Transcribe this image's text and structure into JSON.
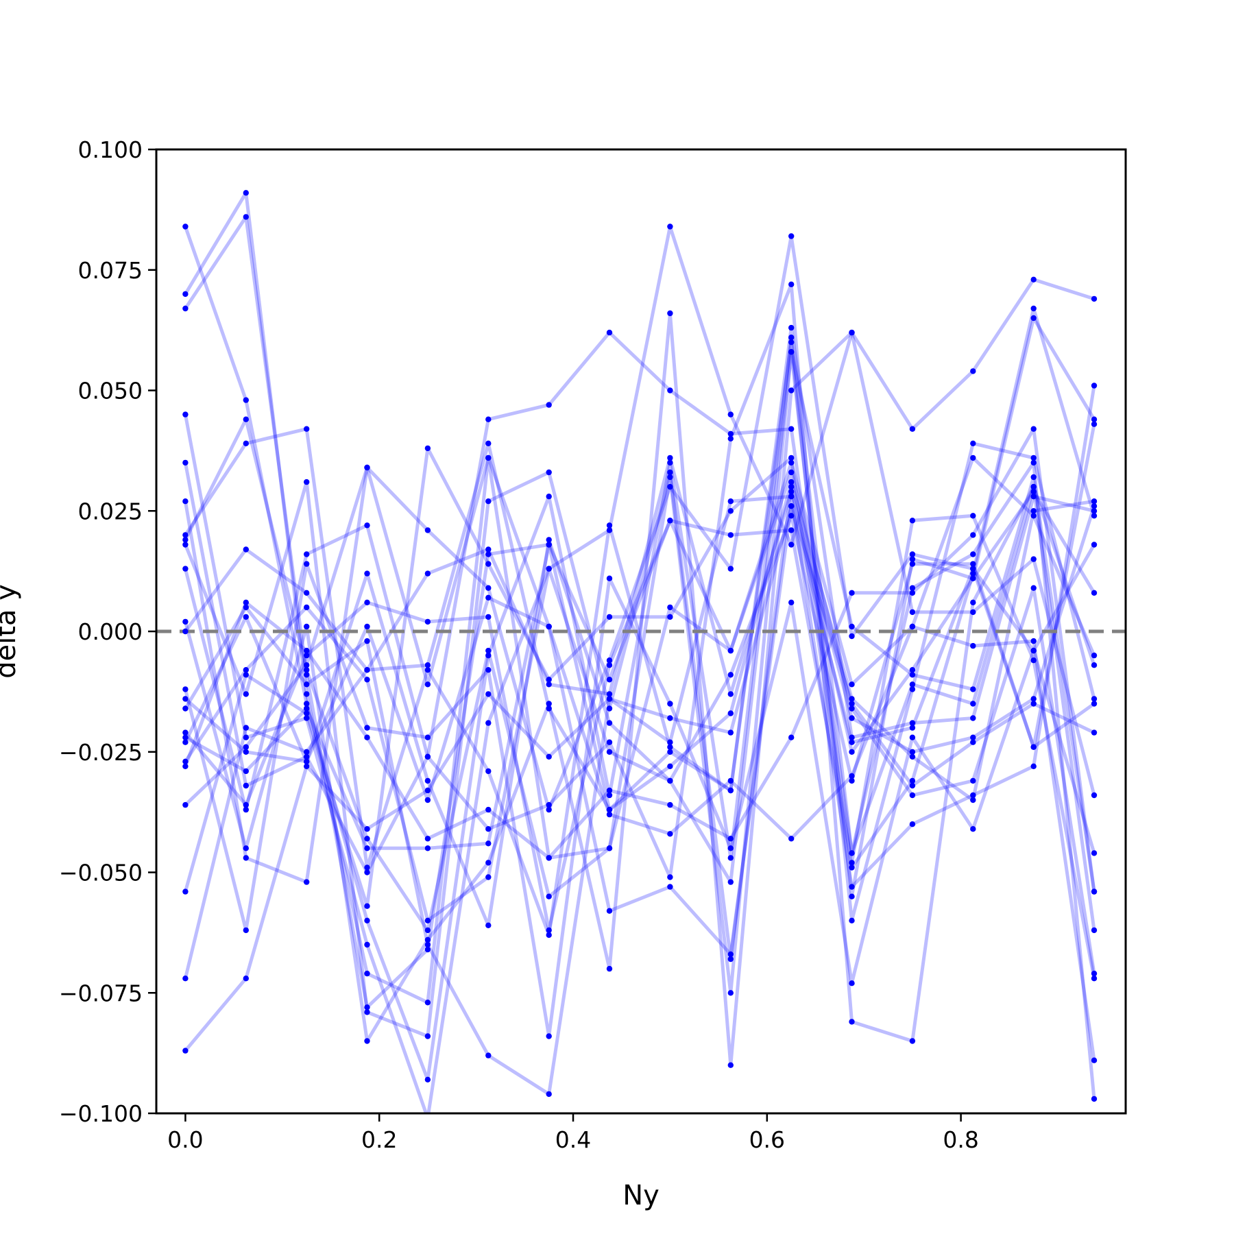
{
  "chart_data": {
    "type": "line",
    "title": "",
    "xlabel": "Ny",
    "ylabel": "delta y",
    "xlim": [
      -0.03,
      0.97
    ],
    "ylim": [
      -0.1,
      0.1
    ],
    "x_ticks": [
      "0.0",
      "0.2",
      "0.4",
      "0.6",
      "0.8"
    ],
    "x_tick_values": [
      0.0,
      0.2,
      0.4,
      0.6,
      0.8
    ],
    "y_ticks": [
      "−0.100",
      "−0.075",
      "−0.050",
      "−0.025",
      "0.000",
      "0.025",
      "0.050",
      "0.075",
      "0.100"
    ],
    "y_tick_values": [
      -0.1,
      -0.075,
      -0.05,
      -0.025,
      0.0,
      0.025,
      0.05,
      0.075,
      0.1
    ],
    "reference_line": {
      "y": 0.0,
      "style": "dashed",
      "color": "#808080"
    },
    "series_color": "#0000ff",
    "grid": false,
    "x": [
      0.0,
      0.0625,
      0.125,
      0.1875,
      0.25,
      0.3125,
      0.375,
      0.4375,
      0.5,
      0.5625,
      0.625,
      0.6875,
      0.75,
      0.8125,
      0.875,
      0.9375
    ],
    "series": [
      {
        "values": [
          0.084,
          0.048,
          -0.015,
          -0.06,
          -0.093,
          -0.005,
          0.028,
          -0.034,
          0.035,
          -0.047,
          0.061,
          -0.046,
          -0.011,
          -0.015,
          0.03,
          -0.007
        ]
      },
      {
        "values": [
          0.07,
          0.091,
          -0.013,
          -0.071,
          -0.077,
          0.036,
          -0.047,
          -0.045,
          0.032,
          -0.075,
          0.058,
          -0.055,
          0.015,
          0.011,
          0.065,
          0.044
        ]
      },
      {
        "values": [
          0.067,
          0.086,
          -0.009,
          -0.078,
          -0.066,
          0.016,
          0.018,
          -0.01,
          0.023,
          0.02,
          0.021,
          -0.048,
          0.023,
          0.024,
          -0.006,
          -0.072
        ]
      },
      {
        "values": [
          0.045,
          -0.022,
          -0.018,
          -0.065,
          -0.101,
          -0.019,
          0.013,
          0.021,
          0.084,
          0.045,
          0.018,
          0.062,
          0.042,
          0.054,
          0.073,
          0.069
        ]
      },
      {
        "values": [
          0.035,
          -0.032,
          -0.026,
          -0.05,
          -0.026,
          0.044,
          0.047,
          0.062,
          0.05,
          0.041,
          0.042,
          -0.046,
          0.009,
          0.016,
          0.035,
          -0.097
        ]
      },
      {
        "values": [
          0.027,
          -0.047,
          -0.052,
          0.034,
          0.021,
          0.009,
          -0.037,
          -0.006,
          0.03,
          0.013,
          0.082,
          -0.001,
          0.016,
          0.013,
          -0.004,
          0.018
        ]
      },
      {
        "values": [
          0.02,
          0.039,
          0.042,
          -0.049,
          -0.008,
          -0.029,
          -0.063,
          0.022,
          -0.024,
          -0.033,
          0.06,
          -0.06,
          -0.012,
          0.039,
          0.036,
          -0.014
        ]
      },
      {
        "values": [
          0.019,
          0.044,
          -0.008,
          -0.043,
          -0.062,
          -0.004,
          -0.055,
          -0.045,
          0.005,
          -0.004,
          0.035,
          -0.011,
          0.001,
          0.036,
          0.024,
          -0.005
        ]
      },
      {
        "values": [
          0.018,
          -0.013,
          0.031,
          -0.079,
          -0.084,
          0.027,
          0.033,
          -0.016,
          0.033,
          -0.068,
          0.03,
          -0.025,
          -0.008,
          0.011,
          0.029,
          0.008
        ]
      },
      {
        "values": [
          0.013,
          -0.037,
          0.016,
          0.022,
          -0.026,
          -0.041,
          -0.036,
          -0.023,
          -0.051,
          0.04,
          0.072,
          -0.081,
          -0.085,
          0.006,
          0.03,
          -0.062
        ]
      },
      {
        "values": [
          0.002,
          -0.045,
          0.001,
          -0.085,
          -0.064,
          -0.048,
          -0.015,
          -0.07,
          0.066,
          -0.09,
          0.05,
          0.062,
          0.004,
          0.004,
          0.015,
          -0.034
        ]
      },
      {
        "values": [
          0.0,
          0.017,
          0.008,
          -0.008,
          0.012,
          0.017,
          -0.011,
          -0.013,
          0.036,
          -0.013,
          0.029,
          -0.018,
          -0.025,
          -0.022,
          -0.014,
          0.026
        ]
      },
      {
        "values": [
          -0.012,
          -0.062,
          0.014,
          -0.02,
          -0.022,
          -0.008,
          -0.084,
          0.011,
          -0.015,
          -0.045,
          0.006,
          -0.073,
          -0.022,
          -0.041,
          -0.004,
          -0.046
        ]
      },
      {
        "values": [
          -0.014,
          -0.025,
          -0.027,
          0.012,
          -0.031,
          -0.061,
          0.019,
          -0.019,
          -0.031,
          -0.052,
          0.058,
          0.001,
          -0.009,
          -0.012,
          0.032,
          -0.054
        ]
      },
      {
        "values": [
          -0.016,
          0.005,
          -0.011,
          -0.002,
          -0.065,
          -0.088,
          -0.096,
          -0.014,
          -0.018,
          -0.021,
          0.026,
          -0.015,
          -0.032,
          -0.023,
          -0.015,
          -0.021
        ]
      },
      {
        "values": [
          -0.021,
          -0.036,
          -0.005,
          0.006,
          0.002,
          0.003,
          -0.062,
          -0.007,
          0.023,
          -0.004,
          0.033,
          -0.016,
          -0.034,
          -0.031,
          0.009,
          -0.071
        ]
      },
      {
        "values": [
          -0.022,
          -0.029,
          -0.016,
          -0.045,
          -0.045,
          -0.044,
          0.018,
          -0.037,
          -0.028,
          -0.017,
          0.031,
          -0.014,
          -0.026,
          -0.035,
          0.025,
          0.027
        ]
      },
      {
        "values": [
          -0.023,
          0.003,
          -0.027,
          0.001,
          -0.035,
          0.007,
          0.001,
          -0.058,
          -0.053,
          -0.067,
          0.026,
          -0.023,
          -0.02,
          0.013,
          -0.024,
          -0.015
        ]
      },
      {
        "values": [
          -0.027,
          -0.008,
          0.005,
          -0.01,
          -0.06,
          -0.051,
          0.013,
          -0.025,
          -0.031,
          -0.009,
          0.024,
          -0.031,
          0.014,
          0.014,
          -0.024,
          0.043
        ]
      },
      {
        "values": [
          -0.028,
          0.006,
          -0.004,
          -0.022,
          -0.043,
          -0.037,
          -0.047,
          -0.033,
          -0.036,
          -0.043,
          -0.022,
          0.008,
          0.008,
          0.02,
          0.042,
          -0.054
        ]
      },
      {
        "values": [
          -0.036,
          -0.024,
          -0.007,
          0.034,
          -0.011,
          0.036,
          0.001,
          -0.038,
          -0.042,
          -0.031,
          -0.043,
          -0.03,
          0.001,
          -0.003,
          -0.002,
          -0.089
        ]
      },
      {
        "values": [
          -0.054,
          -0.009,
          -0.017,
          -0.057,
          0.038,
          0.014,
          -0.01,
          0.003,
          0.003,
          0.025,
          0.036,
          -0.049,
          -0.031,
          0.012,
          0.067,
          0.024
        ]
      },
      {
        "values": [
          -0.072,
          -0.02,
          -0.025,
          -0.008,
          -0.007,
          0.039,
          -0.016,
          -0.037,
          -0.025,
          -0.033,
          0.063,
          -0.022,
          -0.019,
          -0.018,
          0.028,
          0.025
        ]
      },
      {
        "values": [
          -0.087,
          -0.072,
          -0.028,
          -0.041,
          -0.033,
          -0.013,
          -0.026,
          -0.014,
          -0.023,
          0.027,
          0.028,
          -0.053,
          -0.04,
          -0.034,
          -0.028,
          0.051
        ]
      }
    ]
  }
}
